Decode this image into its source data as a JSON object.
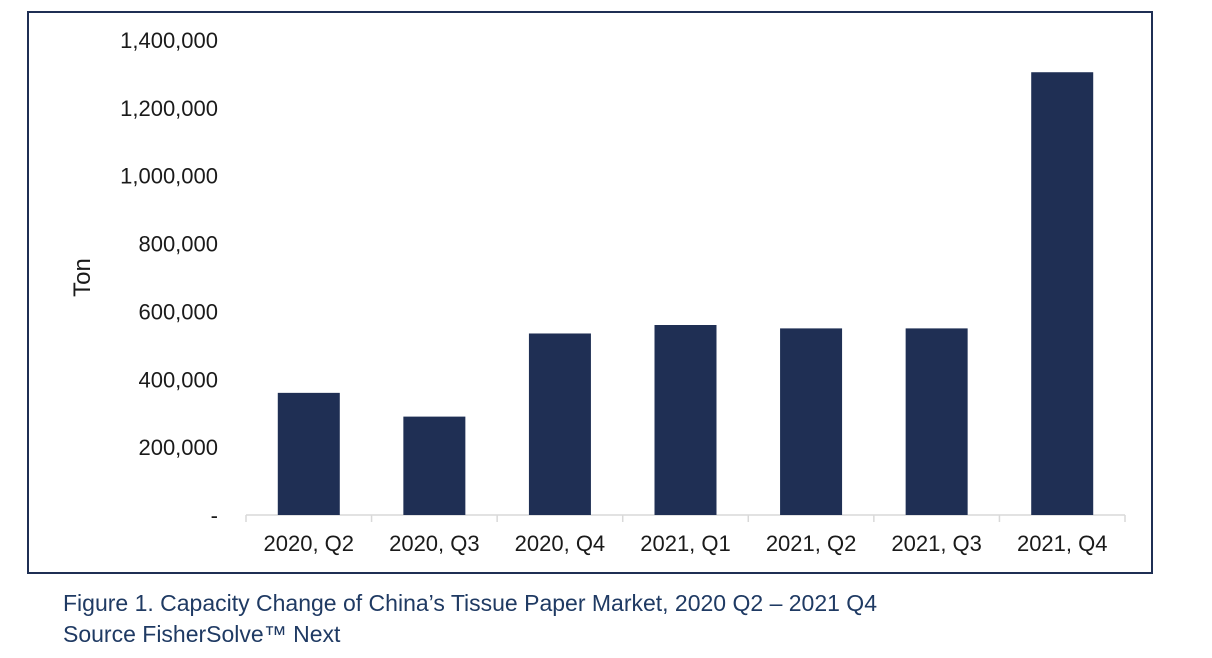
{
  "figure": {
    "caption": "Figure 1. Capacity Change of China’s Tissue Paper Market, 2020 Q2 – 2021 Q4",
    "source": "Source FisherSolve™ Next"
  },
  "colors": {
    "bar": "#1f2f54",
    "frame": "#1f2f54",
    "axis": "#d9d9d9",
    "text": "#1a1a1a",
    "caption": "#1f3a63"
  },
  "chart_data": {
    "type": "bar",
    "title": "",
    "xlabel": "",
    "ylabel": "Ton",
    "categories": [
      "2020, Q2",
      "2020, Q3",
      "2020, Q4",
      "2021, Q1",
      "2021, Q2",
      "2021, Q3",
      "2021, Q4"
    ],
    "values": [
      360000,
      290000,
      535000,
      560000,
      550000,
      550000,
      1305000
    ],
    "ylim": [
      0,
      1400000
    ],
    "yticks": [
      0,
      200000,
      400000,
      600000,
      800000,
      1000000,
      1200000,
      1400000
    ],
    "ytick_labels": [
      "-",
      "200,000",
      "400,000",
      "600,000",
      "800,000",
      "1,000,000",
      "1,200,000",
      "1,400,000"
    ],
    "grid": false,
    "legend": "none"
  }
}
